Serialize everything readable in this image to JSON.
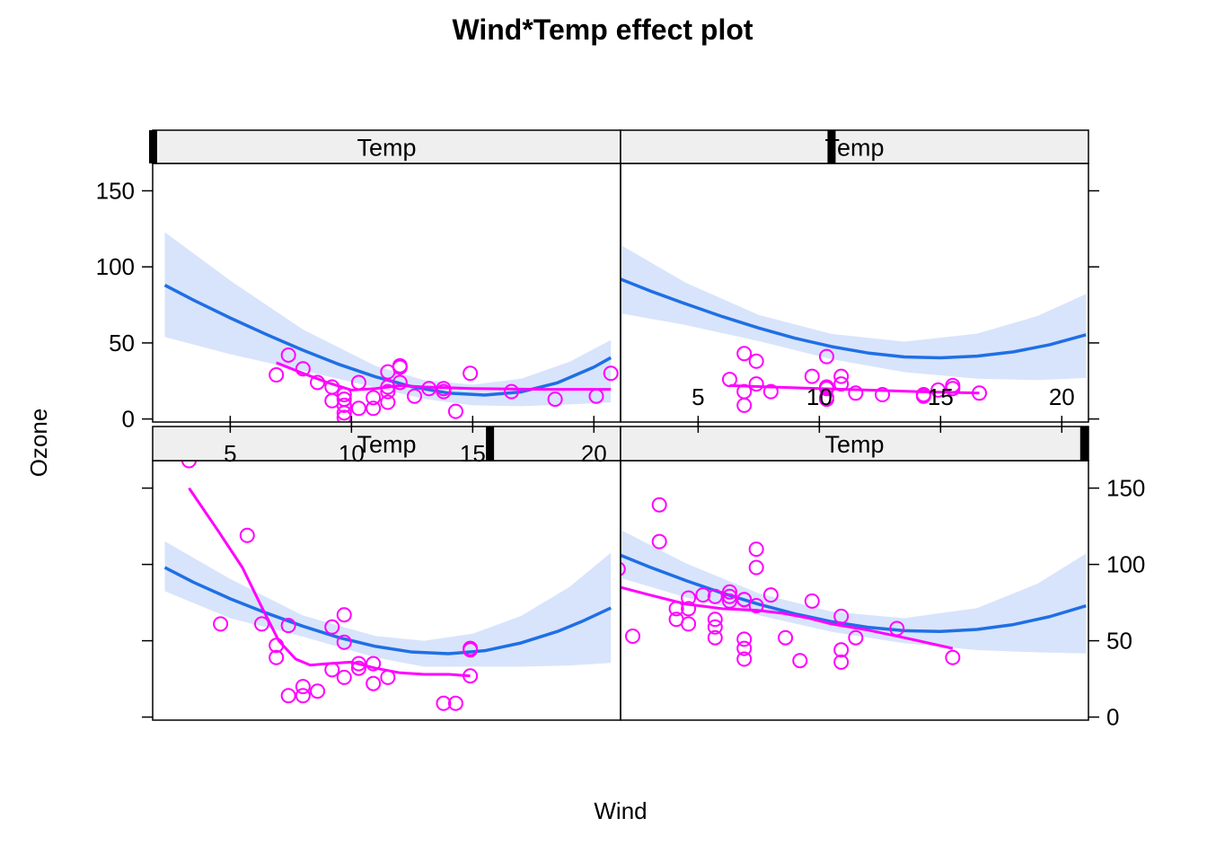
{
  "chart_data": {
    "type": "scatter",
    "title": "Wind*Temp effect plot",
    "xlabel": "Wind",
    "ylabel": "Ozone",
    "xlim": [
      1.8,
      21.1
    ],
    "ylim": [
      -2,
      168
    ],
    "x_ticks": [
      "5",
      "10",
      "15",
      "20"
    ],
    "y_ticks": [
      "0",
      "50",
      "100",
      "150"
    ],
    "colors": {
      "fit_line": "#1f6fe5",
      "ci_band": "#d8e4fb",
      "points": "#ff00ff",
      "smoother": "#ff00ff",
      "strip_bg": "#efefef",
      "strip_marker": "#000000"
    },
    "panels": [
      {
        "strip_label": "Temp",
        "temp_marker_fraction": 0.72,
        "points": [
          [
            3.3,
            168
          ],
          [
            4.6,
            61
          ],
          [
            5.7,
            119
          ],
          [
            6.3,
            61
          ],
          [
            6.9,
            47
          ],
          [
            6.9,
            39
          ],
          [
            7.4,
            60
          ],
          [
            7.4,
            14
          ],
          [
            8.0,
            20
          ],
          [
            8.0,
            14
          ],
          [
            8.6,
            17
          ],
          [
            9.2,
            31
          ],
          [
            9.2,
            59
          ],
          [
            9.7,
            67
          ],
          [
            9.7,
            49
          ],
          [
            9.7,
            26
          ],
          [
            10.3,
            35
          ],
          [
            10.3,
            32
          ],
          [
            10.9,
            35
          ],
          [
            10.9,
            22
          ],
          [
            11.5,
            26
          ],
          [
            13.8,
            9
          ],
          [
            14.3,
            9
          ],
          [
            14.9,
            44
          ],
          [
            14.9,
            45
          ],
          [
            14.9,
            27
          ]
        ],
        "fit": [
          [
            2.3,
            98
          ],
          [
            3.5,
            88.2
          ],
          [
            5,
            77.5
          ],
          [
            6.5,
            68.1
          ],
          [
            8,
            59.5
          ],
          [
            9.5,
            52
          ],
          [
            11,
            46.3
          ],
          [
            12.5,
            42.6
          ],
          [
            14,
            41.5
          ],
          [
            15.5,
            43.5
          ],
          [
            17,
            48.6
          ],
          [
            18.5,
            56.1
          ],
          [
            19.5,
            62.6
          ],
          [
            20.7,
            71.5
          ]
        ],
        "ci_upper": [
          [
            2.3,
            115.1
          ],
          [
            5,
            90.5
          ],
          [
            8,
            66.5
          ],
          [
            11,
            53.1
          ],
          [
            13,
            50
          ],
          [
            15,
            54.6
          ],
          [
            17,
            66.3
          ],
          [
            19,
            85.3
          ],
          [
            20.7,
            107.7
          ]
        ],
        "ci_lower": [
          [
            2.3,
            82.5
          ],
          [
            5,
            64.8
          ],
          [
            8,
            52.7
          ],
          [
            11,
            39
          ],
          [
            13,
            33
          ],
          [
            15,
            33
          ],
          [
            17,
            33
          ],
          [
            19,
            33.8
          ],
          [
            20.7,
            35.5
          ]
        ],
        "smooth": [
          [
            3.3,
            150
          ],
          [
            4.5,
            122
          ],
          [
            5.5,
            98
          ],
          [
            6.3,
            72
          ],
          [
            7,
            50
          ],
          [
            7.7,
            38
          ],
          [
            8.3,
            34
          ],
          [
            9,
            35
          ],
          [
            10,
            36
          ],
          [
            11,
            32
          ],
          [
            12,
            29
          ],
          [
            13,
            28
          ],
          [
            14,
            28
          ],
          [
            14.9,
            27
          ]
        ]
      },
      {
        "strip_label": "Temp",
        "temp_marker_fraction": 0.99,
        "points": [
          [
            1.7,
            97
          ],
          [
            2.3,
            53
          ],
          [
            3.4,
            115
          ],
          [
            3.4,
            139
          ],
          [
            4.1,
            71
          ],
          [
            4.1,
            64
          ],
          [
            4.6,
            61
          ],
          [
            4.6,
            78
          ],
          [
            4.6,
            71
          ],
          [
            5.2,
            80
          ],
          [
            5.7,
            79
          ],
          [
            5.7,
            64
          ],
          [
            5.7,
            59
          ],
          [
            5.7,
            52
          ],
          [
            6.3,
            76
          ],
          [
            6.3,
            79
          ],
          [
            6.3,
            82
          ],
          [
            6.9,
            77
          ],
          [
            6.9,
            77
          ],
          [
            6.9,
            51
          ],
          [
            6.9,
            45
          ],
          [
            6.9,
            38
          ],
          [
            7.4,
            110
          ],
          [
            7.4,
            98
          ],
          [
            7.4,
            73
          ],
          [
            8.0,
            80
          ],
          [
            8.6,
            52
          ],
          [
            9.2,
            37
          ],
          [
            9.7,
            76
          ],
          [
            10.9,
            66
          ],
          [
            10.9,
            44
          ],
          [
            10.9,
            36
          ],
          [
            11.5,
            52
          ],
          [
            13.2,
            58
          ],
          [
            15.5,
            39
          ]
        ],
        "fit": [
          [
            1.8,
            106
          ],
          [
            3,
            98.3
          ],
          [
            4.5,
            89.4
          ],
          [
            6,
            81.2
          ],
          [
            7.5,
            73.9
          ],
          [
            9,
            67.6
          ],
          [
            10.5,
            62.5
          ],
          [
            12,
            58.8
          ],
          [
            13.5,
            56.6
          ],
          [
            15,
            56.1
          ],
          [
            16.5,
            57.4
          ],
          [
            18,
            60.6
          ],
          [
            19.5,
            65.8
          ],
          [
            21,
            72.9
          ]
        ],
        "ci_upper": [
          [
            1.8,
            122.7
          ],
          [
            4.5,
            100.7
          ],
          [
            7.5,
            81.1
          ],
          [
            10.5,
            69.1
          ],
          [
            13.5,
            64.8
          ],
          [
            16.5,
            71.4
          ],
          [
            19,
            87.4
          ],
          [
            21,
            107.1
          ]
        ],
        "ci_lower": [
          [
            1.8,
            91.1
          ],
          [
            4.5,
            78.4
          ],
          [
            7.5,
            66.7
          ],
          [
            10.5,
            55.9
          ],
          [
            13.5,
            48.4
          ],
          [
            16.5,
            43.9
          ],
          [
            19,
            42.4
          ],
          [
            21,
            41.7
          ]
        ],
        "smooth": [
          [
            1.8,
            85
          ],
          [
            3,
            80
          ],
          [
            4.5,
            74
          ],
          [
            6,
            71
          ],
          [
            7.4,
            70
          ],
          [
            8.5,
            68
          ],
          [
            9.5,
            65
          ],
          [
            10.5,
            61
          ],
          [
            12,
            57
          ],
          [
            13.5,
            52
          ],
          [
            15.5,
            45
          ]
        ]
      },
      {
        "strip_label": "Temp",
        "temp_marker_fraction": 0.0,
        "points": [
          [
            6.9,
            29
          ],
          [
            7.4,
            42
          ],
          [
            8.0,
            33
          ],
          [
            8.6,
            24
          ],
          [
            9.2,
            21
          ],
          [
            9.2,
            12
          ],
          [
            9.7,
            16
          ],
          [
            9.7,
            13
          ],
          [
            9.7,
            9
          ],
          [
            9.7,
            4
          ],
          [
            9.7,
            1
          ],
          [
            10.3,
            24
          ],
          [
            10.3,
            7
          ],
          [
            10.9,
            14
          ],
          [
            10.9,
            7
          ],
          [
            11.5,
            31
          ],
          [
            11.5,
            21
          ],
          [
            11.5,
            18
          ],
          [
            11.5,
            11
          ],
          [
            12.0,
            35
          ],
          [
            12.0,
            34
          ],
          [
            12.0,
            24
          ],
          [
            12.6,
            15
          ],
          [
            13.2,
            20
          ],
          [
            13.8,
            20
          ],
          [
            13.8,
            18
          ],
          [
            14.3,
            5
          ],
          [
            14.9,
            30
          ],
          [
            16.6,
            18
          ],
          [
            18.4,
            13
          ],
          [
            20.1,
            15
          ],
          [
            20.7,
            30
          ]
        ],
        "fit": [
          [
            2.3,
            88
          ],
          [
            3.5,
            78
          ],
          [
            5,
            66.4
          ],
          [
            6.5,
            55.5
          ],
          [
            8,
            45.2
          ],
          [
            9.5,
            35.8
          ],
          [
            11,
            27.7
          ],
          [
            12.5,
            21.2
          ],
          [
            14,
            17
          ],
          [
            15.5,
            15.7
          ],
          [
            17,
            17.8
          ],
          [
            18.5,
            23.8
          ],
          [
            20,
            34.1
          ],
          [
            20.7,
            40.3
          ]
        ],
        "ci_upper": [
          [
            2.3,
            122.8
          ],
          [
            5,
            91
          ],
          [
            8,
            58.8
          ],
          [
            11,
            34.8
          ],
          [
            13,
            25.5
          ],
          [
            15,
            22.6
          ],
          [
            17,
            26.5
          ],
          [
            19,
            37.6
          ],
          [
            20.7,
            51.9
          ]
        ],
        "ci_lower": [
          [
            2.3,
            53.9
          ],
          [
            5,
            42.6
          ],
          [
            8,
            31.8
          ],
          [
            11,
            20.6
          ],
          [
            13,
            13.2
          ],
          [
            15,
            9
          ],
          [
            17,
            8.4
          ],
          [
            19,
            9.6
          ],
          [
            20.7,
            10.9
          ]
        ],
        "smooth": [
          [
            6.9,
            37
          ],
          [
            8,
            30
          ],
          [
            9,
            24
          ],
          [
            10,
            19
          ],
          [
            11,
            20
          ],
          [
            12,
            22
          ],
          [
            13,
            21
          ],
          [
            15,
            20
          ],
          [
            18,
            19.5
          ],
          [
            20.7,
            19.5
          ]
        ]
      },
      {
        "strip_label": "Temp",
        "temp_marker_fraction": 0.45,
        "points": [
          [
            6.3,
            26
          ],
          [
            6.9,
            43
          ],
          [
            6.9,
            18
          ],
          [
            6.9,
            9
          ],
          [
            7.4,
            38
          ],
          [
            7.4,
            23
          ],
          [
            8.0,
            18
          ],
          [
            9.7,
            28
          ],
          [
            10.3,
            41
          ],
          [
            10.3,
            21
          ],
          [
            10.3,
            20
          ],
          [
            10.3,
            14
          ],
          [
            10.3,
            13
          ],
          [
            10.9,
            28
          ],
          [
            10.9,
            23
          ],
          [
            11.5,
            17
          ],
          [
            12.6,
            16
          ],
          [
            14.3,
            15
          ],
          [
            14.3,
            16
          ],
          [
            14.9,
            19
          ],
          [
            15.5,
            22
          ],
          [
            15.5,
            20
          ],
          [
            16.6,
            17
          ]
        ],
        "fit": [
          [
            1.8,
            91.9
          ],
          [
            3,
            84.3
          ],
          [
            4.5,
            75.6
          ],
          [
            6,
            67.3
          ],
          [
            7.5,
            59.8
          ],
          [
            9,
            53.1
          ],
          [
            10.5,
            47.6
          ],
          [
            12,
            43.4
          ],
          [
            13.5,
            40.8
          ],
          [
            15,
            40.2
          ],
          [
            16.5,
            41.3
          ],
          [
            18,
            44.1
          ],
          [
            19.5,
            48.8
          ],
          [
            21,
            55.4
          ]
        ],
        "ci_upper": [
          [
            1.8,
            114.4
          ],
          [
            4.5,
            89.5
          ],
          [
            7.5,
            68.4
          ],
          [
            10.5,
            55.9
          ],
          [
            13.5,
            50.8
          ],
          [
            16.5,
            56.1
          ],
          [
            19,
            67.7
          ],
          [
            21,
            82.2
          ]
        ],
        "ci_lower": [
          [
            1.8,
            69.4
          ],
          [
            4.5,
            61.7
          ],
          [
            7.5,
            51.2
          ],
          [
            10.5,
            39.3
          ],
          [
            13.5,
            30.8
          ],
          [
            16.5,
            26.5
          ],
          [
            19,
            25.6
          ],
          [
            21,
            26.9
          ]
        ],
        "smooth": [
          [
            6.3,
            22
          ],
          [
            8,
            21
          ],
          [
            10,
            20
          ],
          [
            12,
            19
          ],
          [
            14,
            18
          ],
          [
            16.6,
            17
          ]
        ]
      }
    ]
  }
}
